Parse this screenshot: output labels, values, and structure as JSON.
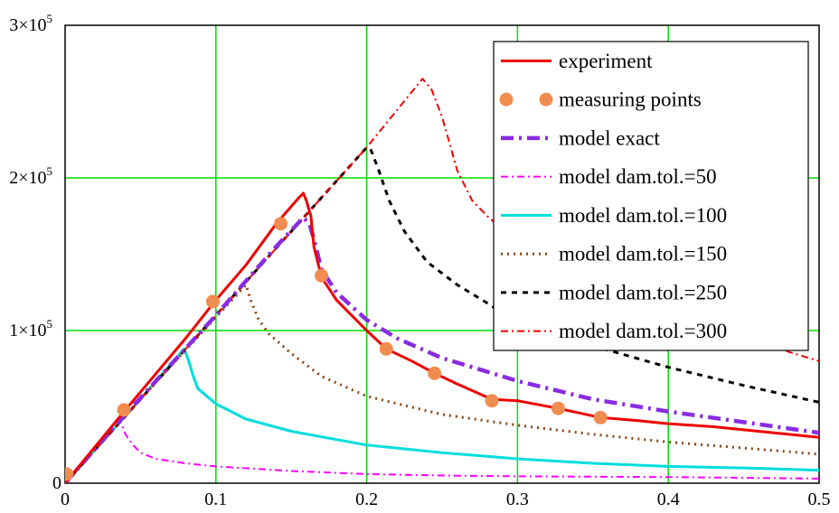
{
  "chart_data": {
    "type": "line",
    "title": "",
    "xlabel": "",
    "ylabel": "",
    "xlim": [
      0,
      0.5
    ],
    "ylim": [
      0,
      300000
    ],
    "grid": true,
    "grid_color": "#00dd00",
    "legend_position": "top-right",
    "x_ticks": [
      {
        "value": 0,
        "label": "0"
      },
      {
        "value": 0.1,
        "label": "0.1"
      },
      {
        "value": 0.2,
        "label": "0.2"
      },
      {
        "value": 0.3,
        "label": "0.3"
      },
      {
        "value": 0.4,
        "label": "0.4"
      },
      {
        "value": 0.5,
        "label": "0.5"
      }
    ],
    "y_ticks": [
      {
        "value": 0,
        "mantissa": "0",
        "exp": ""
      },
      {
        "value": 100000,
        "mantissa": "1×10",
        "exp": "5"
      },
      {
        "value": 200000,
        "mantissa": "2×10",
        "exp": "5"
      },
      {
        "value": 300000,
        "mantissa": "3×10",
        "exp": "5"
      }
    ],
    "series": [
      {
        "name": "experiment",
        "style": "solid",
        "color": "#ee0000",
        "points": [
          [
            0,
            0
          ],
          [
            0.04,
            48000
          ],
          [
            0.08,
            95000
          ],
          [
            0.1,
            120000
          ],
          [
            0.12,
            143000
          ],
          [
            0.14,
            170000
          ],
          [
            0.155,
            187000
          ],
          [
            0.158,
            190000
          ],
          [
            0.16,
            185000
          ],
          [
            0.163,
            175000
          ],
          [
            0.165,
            155000
          ],
          [
            0.17,
            135000
          ],
          [
            0.18,
            120000
          ],
          [
            0.2,
            100000
          ],
          [
            0.213,
            88000
          ],
          [
            0.23,
            80000
          ],
          [
            0.245,
            72000
          ],
          [
            0.26,
            65000
          ],
          [
            0.283,
            55000
          ],
          [
            0.3,
            54000
          ],
          [
            0.327,
            49000
          ],
          [
            0.355,
            43000
          ],
          [
            0.38,
            41000
          ],
          [
            0.4,
            39000
          ],
          [
            0.43,
            37000
          ],
          [
            0.45,
            35000
          ],
          [
            0.47,
            33000
          ],
          [
            0.5,
            30000
          ]
        ]
      },
      {
        "name": "measuring points",
        "style": "markers",
        "color": "#f08c50",
        "points": [
          [
            0.001,
            6000
          ],
          [
            0.039,
            48000
          ],
          [
            0.098,
            119000
          ],
          [
            0.143,
            170000
          ],
          [
            0.17,
            136000
          ],
          [
            0.213,
            88000
          ],
          [
            0.245,
            72000
          ],
          [
            0.283,
            54000
          ],
          [
            0.327,
            49000
          ],
          [
            0.355,
            43000
          ]
        ]
      },
      {
        "name": "model exact",
        "style": "dashdot-bold",
        "color": "#8a2be2",
        "points": [
          [
            0,
            0
          ],
          [
            0.04,
            45000
          ],
          [
            0.1,
            110000
          ],
          [
            0.14,
            155000
          ],
          [
            0.158,
            174000
          ],
          [
            0.162,
            170000
          ],
          [
            0.165,
            160000
          ],
          [
            0.17,
            140000
          ],
          [
            0.18,
            125000
          ],
          [
            0.2,
            107000
          ],
          [
            0.22,
            95000
          ],
          [
            0.25,
            82000
          ],
          [
            0.3,
            67000
          ],
          [
            0.35,
            55000
          ],
          [
            0.4,
            47000
          ],
          [
            0.45,
            40000
          ],
          [
            0.5,
            33000
          ]
        ]
      },
      {
        "name": "model dam.tol.=50",
        "style": "dashdot-thin",
        "color": "#ff00ff",
        "points": [
          [
            0,
            0
          ],
          [
            0.035,
            42000
          ],
          [
            0.037,
            40000
          ],
          [
            0.04,
            32000
          ],
          [
            0.045,
            25000
          ],
          [
            0.05,
            20000
          ],
          [
            0.06,
            16000
          ],
          [
            0.08,
            13000
          ],
          [
            0.1,
            11000
          ],
          [
            0.15,
            8000
          ],
          [
            0.2,
            6000
          ],
          [
            0.25,
            5000
          ],
          [
            0.3,
            4500
          ],
          [
            0.4,
            4000
          ],
          [
            0.5,
            3000
          ]
        ]
      },
      {
        "name": "model dam.tol.=100",
        "style": "solid",
        "color": "#00dddd",
        "points": [
          [
            0,
            0
          ],
          [
            0.04,
            44000
          ],
          [
            0.079,
            88000
          ],
          [
            0.082,
            80000
          ],
          [
            0.085,
            70000
          ],
          [
            0.088,
            62000
          ],
          [
            0.1,
            52000
          ],
          [
            0.12,
            42000
          ],
          [
            0.15,
            34000
          ],
          [
            0.2,
            25000
          ],
          [
            0.25,
            20000
          ],
          [
            0.3,
            16000
          ],
          [
            0.35,
            13000
          ],
          [
            0.4,
            11000
          ],
          [
            0.45,
            10000
          ],
          [
            0.5,
            8500
          ]
        ]
      },
      {
        "name": "model dam.tol.=150",
        "style": "dotted",
        "color": "#8b4513",
        "points": [
          [
            0,
            0
          ],
          [
            0.06,
            66000
          ],
          [
            0.12,
            130000
          ],
          [
            0.123,
            120000
          ],
          [
            0.128,
            108000
          ],
          [
            0.135,
            98000
          ],
          [
            0.15,
            85000
          ],
          [
            0.17,
            70000
          ],
          [
            0.2,
            57000
          ],
          [
            0.25,
            45000
          ],
          [
            0.3,
            38000
          ],
          [
            0.35,
            32000
          ],
          [
            0.4,
            27000
          ],
          [
            0.45,
            23000
          ],
          [
            0.5,
            19000
          ]
        ]
      },
      {
        "name": "model dam.tol.=250",
        "style": "dashed",
        "color": "#000000",
        "points": [
          [
            0,
            0
          ],
          [
            0.05,
            55000
          ],
          [
            0.1,
            110000
          ],
          [
            0.15,
            165000
          ],
          [
            0.2,
            220000
          ],
          [
            0.203,
            218000
          ],
          [
            0.208,
            205000
          ],
          [
            0.215,
            185000
          ],
          [
            0.225,
            165000
          ],
          [
            0.24,
            145000
          ],
          [
            0.26,
            130000
          ],
          [
            0.28,
            118000
          ],
          [
            0.3,
            105000
          ],
          [
            0.35,
            90000
          ],
          [
            0.4,
            76000
          ],
          [
            0.45,
            64000
          ],
          [
            0.5,
            53000
          ]
        ]
      },
      {
        "name": "model dam.tol.=300",
        "style": "dashdot-thin",
        "color": "#ee0000",
        "points": [
          [
            0,
            0
          ],
          [
            0.1,
            110000
          ],
          [
            0.2,
            220000
          ],
          [
            0.237,
            265000
          ],
          [
            0.243,
            258000
          ],
          [
            0.25,
            240000
          ],
          [
            0.26,
            205000
          ],
          [
            0.27,
            185000
          ],
          [
            0.28,
            175000
          ],
          [
            0.3,
            158000
          ],
          [
            0.33,
            140000
          ],
          [
            0.36,
            128000
          ],
          [
            0.4,
            117000
          ],
          [
            0.45,
            100000
          ],
          [
            0.48,
            86000
          ],
          [
            0.5,
            80000
          ]
        ]
      }
    ]
  }
}
